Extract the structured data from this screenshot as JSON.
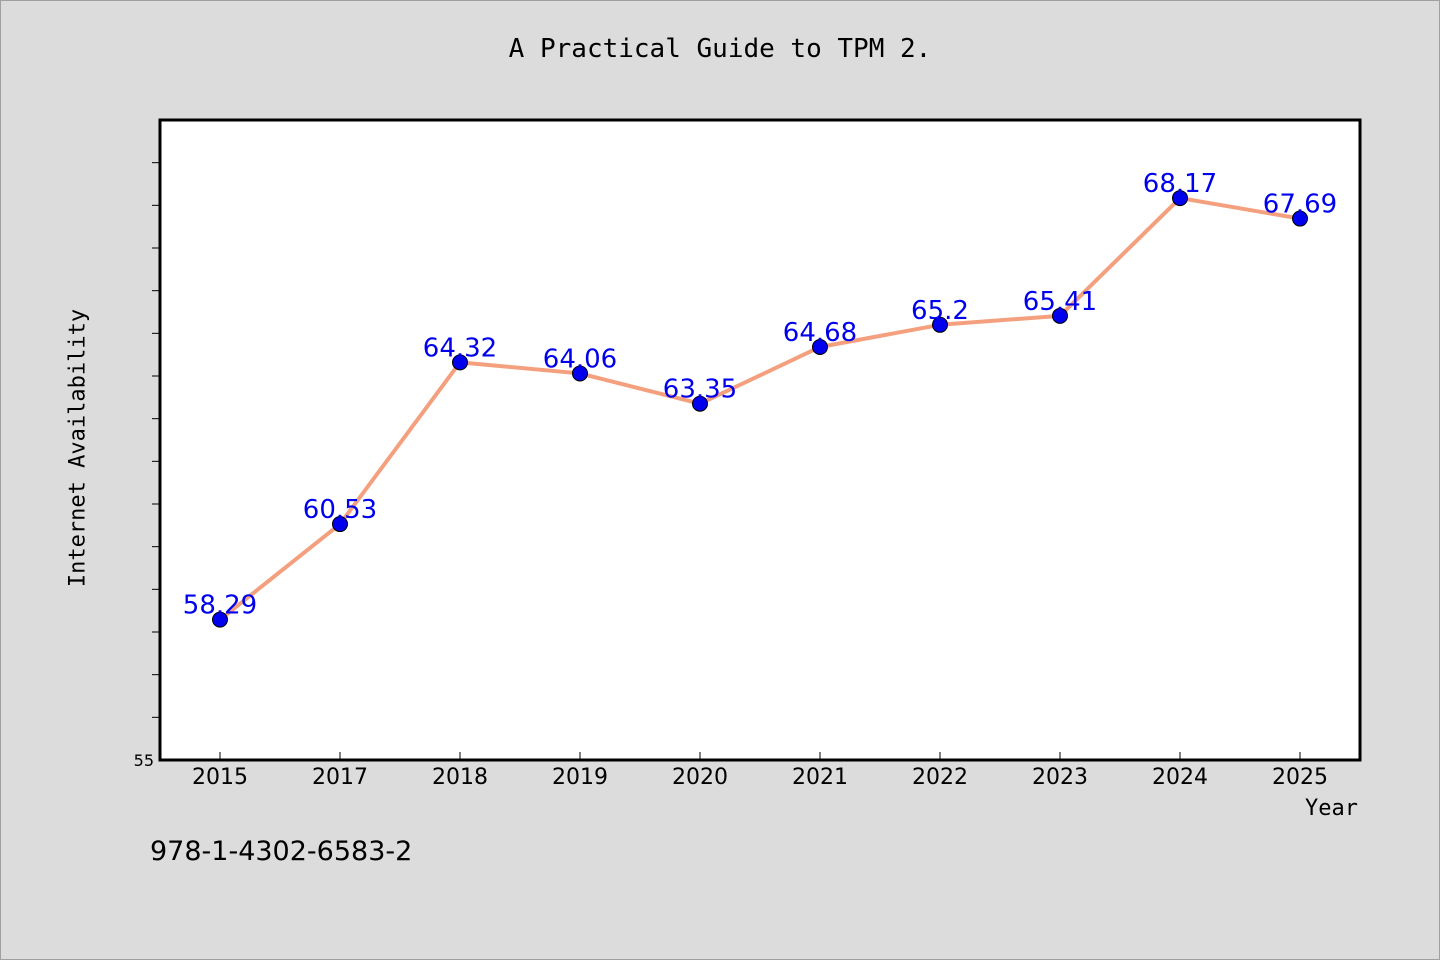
{
  "chart_data": {
    "type": "line",
    "title": "A Practical Guide to TPM 2.",
    "xlabel": "Year",
    "ylabel": "Internet Availability",
    "categories": [
      "2015",
      "2017",
      "2018",
      "2019",
      "2020",
      "2021",
      "2022",
      "2023",
      "2024",
      "2025"
    ],
    "values": [
      58.29,
      60.53,
      64.32,
      64.06,
      63.35,
      64.68,
      65.2,
      65.41,
      68.17,
      67.69
    ],
    "data_labels": [
      "58.29",
      "60.53",
      "64.32",
      "64.06",
      "63.35",
      "64.68",
      "65.2",
      "65.41",
      "68.17",
      "67.69"
    ],
    "ylim": [
      55,
      70
    ],
    "y_tick_labels": [
      "55"
    ],
    "y_minor_tick_step": 1,
    "grid": false,
    "legend": "none",
    "line_color": "#f4a07e",
    "marker_color": "#0000ee",
    "label_color": "#0000ee",
    "plot_background": "#ffffff",
    "page_background": "#dcdcdc"
  },
  "footnote": "978-1-4302-6583-2"
}
